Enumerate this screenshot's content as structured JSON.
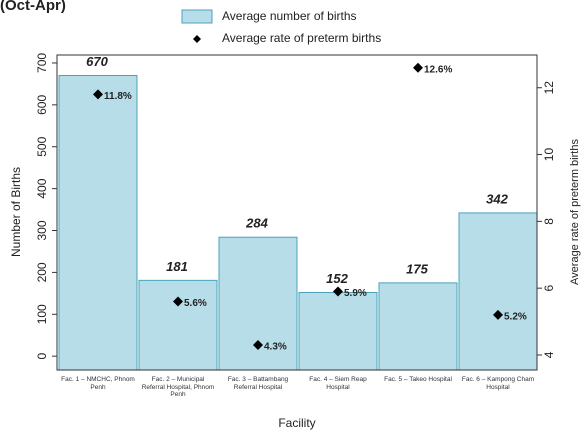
{
  "chart_data": {
    "type": "bar",
    "title": "(Oct-Apr)",
    "x_label": "Facility",
    "y_label": "Number of Births",
    "y2_label": "Average rate of preterm births",
    "categories": [
      "Fac. 1 – NMCHC, Phnom Penh",
      "Fac. 2 – Municipal Referral Hospital, Phnom Penh",
      "Fac. 3 – Battambang Referral Hospital",
      "Fac. 4 – Siem Reap Hospital",
      "Fac. 5 – Takeo Hospital",
      "Fac. 6 – Kampong Cham Hospital"
    ],
    "series": [
      {
        "name": "Average number of births",
        "type": "bar",
        "color": "#b7dde8",
        "values": [
          670,
          181,
          284,
          152,
          175,
          342
        ]
      },
      {
        "name": "Average rate of preterm births",
        "type": "scatter",
        "axis": "y2",
        "color": "#000000",
        "values": [
          11.8,
          5.6,
          4.3,
          5.9,
          12.6,
          5.2
        ],
        "value_labels": [
          "11.8%",
          "5.6%",
          "4.3%",
          "5.9%",
          "12.6%",
          "5.2%"
        ]
      }
    ],
    "ylim": [
      -33,
      719
    ],
    "yticks": [
      0,
      100,
      200,
      300,
      400,
      500,
      600,
      700
    ],
    "y2lim": [
      3.55,
      12.98
    ],
    "y2ticks": [
      4,
      6,
      8,
      10,
      12
    ]
  }
}
